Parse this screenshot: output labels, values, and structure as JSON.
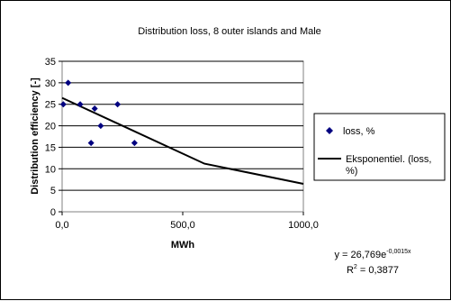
{
  "chart_data": {
    "type": "scatter",
    "title": "Distribution loss, 8 outer islands and Male",
    "xlabel": "MWh",
    "ylabel": "Distribution efficiency [-]",
    "xlim": [
      0,
      1000
    ],
    "ylim": [
      0,
      35
    ],
    "x_ticks": [
      0,
      500,
      1000
    ],
    "x_tick_labels": [
      "0,0",
      "500,0",
      "1000,0"
    ],
    "y_ticks": [
      0,
      5,
      10,
      15,
      20,
      25,
      30,
      35
    ],
    "y_tick_labels": [
      "0",
      "5",
      "10",
      "15",
      "20",
      "25",
      "30",
      "35"
    ],
    "grid": "horizontal",
    "legend_position": "right",
    "series": [
      {
        "name": "loss, %",
        "marker": "diamond",
        "color": "#000080",
        "points": [
          {
            "x": 5,
            "y": 25
          },
          {
            "x": 25,
            "y": 30
          },
          {
            "x": 75,
            "y": 25
          },
          {
            "x": 120,
            "y": 16
          },
          {
            "x": 135,
            "y": 24
          },
          {
            "x": 160,
            "y": 20
          },
          {
            "x": 230,
            "y": 25
          },
          {
            "x": 300,
            "y": 16
          }
        ]
      },
      {
        "name": "Eksponentiel. (loss, %)",
        "name_lines": [
          "Eksponentiel. (loss,",
          "%)"
        ],
        "type": "line",
        "color": "#000000",
        "points": [
          {
            "x": 0,
            "y": 26.5
          },
          {
            "x": 590,
            "y": 11.2
          },
          {
            "x": 1000,
            "y": 6.5
          }
        ]
      }
    ],
    "annotations": {
      "equation_prefix": "y = 26,769e",
      "equation_exponent": "-0,0015x",
      "r2_prefix": "R",
      "r2_sup": "2",
      "r2_value": " = 0,3877"
    }
  }
}
